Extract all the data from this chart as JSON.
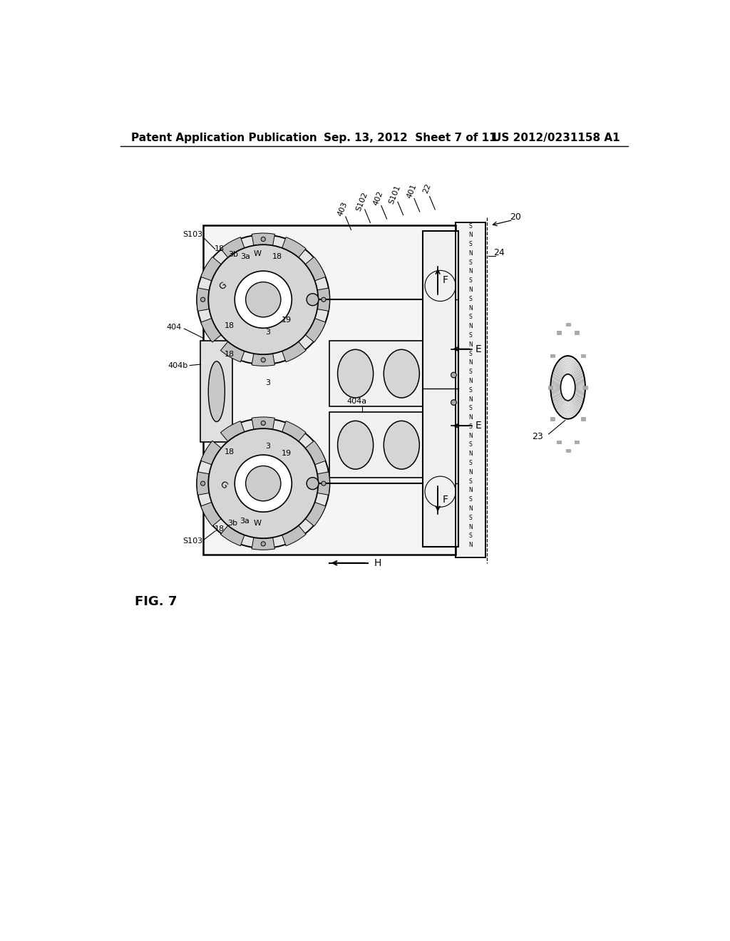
{
  "title_left": "Patent Application Publication",
  "title_mid": "Sep. 13, 2012  Sheet 7 of 11",
  "title_right": "US 2012/0231158 A1",
  "fig_label": "FIG. 7",
  "bg_color": "#ffffff",
  "line_color": "#000000",
  "header_fontsize": 11,
  "fig_label_fontsize": 13
}
